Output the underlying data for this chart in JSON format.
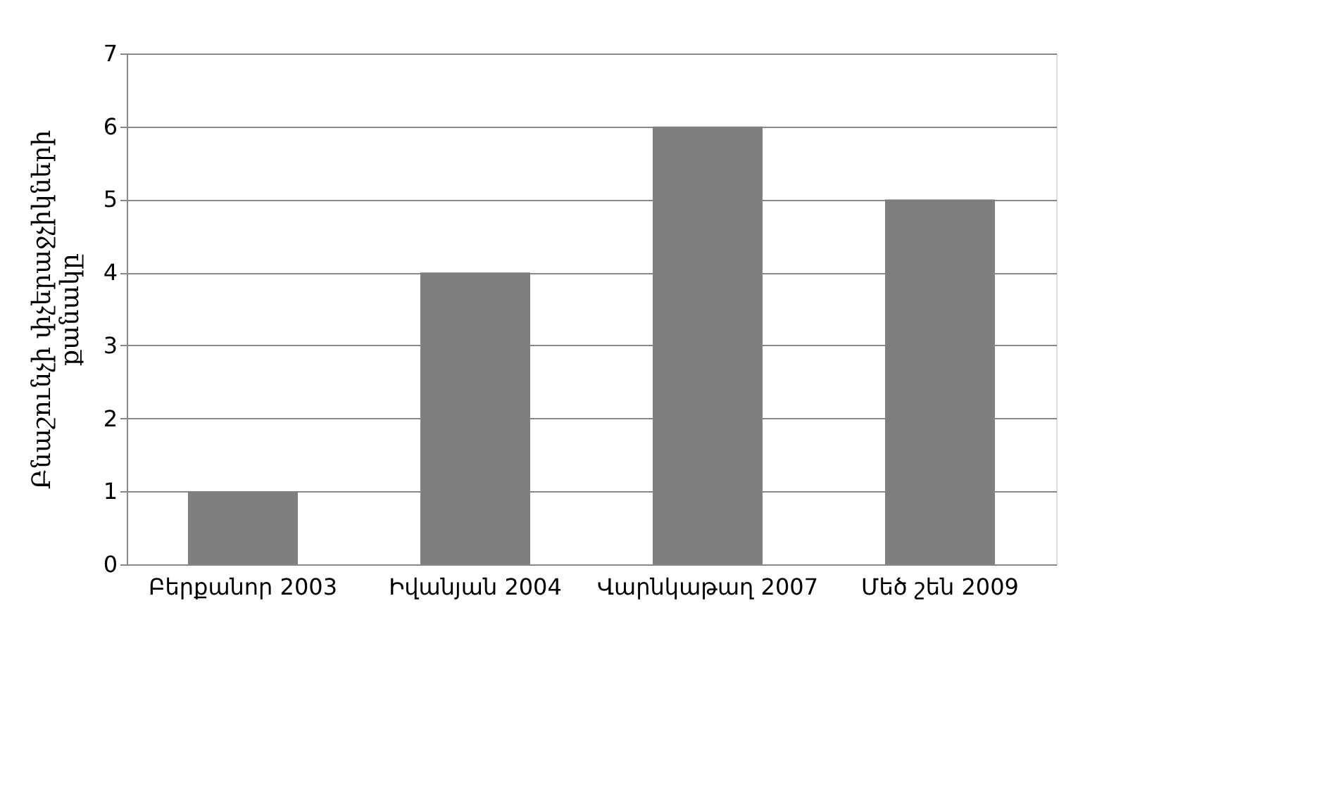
{
  "chart_data": {
    "type": "bar",
    "ylabel": "Բնաշունչի փչերաջչիկների քանակը",
    "categories": [
      "Բերքանոր 2003",
      "Իվանյան 2004",
      "Վարնկաթաղ 2007",
      "Մեծ շեն 2009"
    ],
    "values": [
      1,
      4,
      6,
      5
    ],
    "color": "#7f7f7f",
    "ylim": [
      0,
      7
    ],
    "yticks": [
      0,
      1,
      2,
      3,
      4,
      5,
      6,
      7
    ],
    "grid": "y"
  }
}
